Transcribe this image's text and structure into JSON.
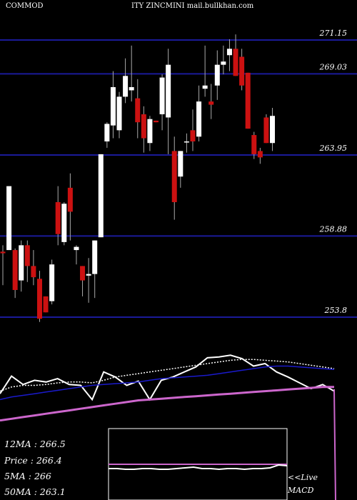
{
  "header": {
    "title_left": "COMMOD",
    "title_right": "ITY ZINCMINI mail.bullkhan.com"
  },
  "chart_data": {
    "type": "candlestick",
    "price_axis": {
      "labels": [
        "271.15",
        "269.03",
        "263.95",
        "258.88",
        "253.8"
      ],
      "values": [
        271.15,
        269.03,
        263.95,
        258.88,
        253.8
      ],
      "grid": true,
      "position": "right"
    },
    "candles": [
      {
        "o": 257.9,
        "h": 258.3,
        "l": 255.8,
        "c": 257.8,
        "up": false
      },
      {
        "o": 262.0,
        "h": 262.0,
        "l": 258.0,
        "c": 258.0,
        "up": true
      },
      {
        "o": 255.5,
        "h": 258.1,
        "l": 255.0,
        "c": 258.0,
        "up": false
      },
      {
        "o": 258.3,
        "h": 258.6,
        "l": 255.4,
        "c": 256.1,
        "up": true
      },
      {
        "o": 258.3,
        "h": 258.6,
        "l": 256.0,
        "c": 257.0,
        "up": false
      },
      {
        "o": 257.0,
        "h": 258.0,
        "l": 255.8,
        "c": 256.3,
        "up": false
      },
      {
        "o": 256.2,
        "h": 256.7,
        "l": 253.5,
        "c": 253.7,
        "up": false
      },
      {
        "o": 254.1,
        "h": 255.1,
        "l": 254.1,
        "c": 255.1,
        "up": false
      },
      {
        "o": 254.8,
        "h": 257.4,
        "l": 254.6,
        "c": 257.1,
        "up": true
      },
      {
        "o": 259.0,
        "h": 262.0,
        "l": 258.3,
        "c": 261.0,
        "up": false
      },
      {
        "o": 258.5,
        "h": 261.0,
        "l": 258.3,
        "c": 260.9,
        "up": true
      },
      {
        "o": 261.9,
        "h": 262.8,
        "l": 258.6,
        "c": 260.4,
        "up": false
      },
      {
        "o": 258.2,
        "h": 258.3,
        "l": 257.1,
        "c": 258.0,
        "up": true
      },
      {
        "o": 256.1,
        "h": 257.0,
        "l": 255.1,
        "c": 257.0,
        "up": false
      },
      {
        "o": 256.5,
        "h": 257.5,
        "l": 254.7,
        "c": 256.4,
        "up": true
      },
      {
        "o": 256.5,
        "h": 258.6,
        "l": 255.0,
        "c": 258.6,
        "up": true
      },
      {
        "o": 258.8,
        "h": 264.0,
        "l": 258.8,
        "c": 264.0,
        "up": true
      },
      {
        "o": 264.8,
        "h": 266.0,
        "l": 264.4,
        "c": 265.9,
        "up": true
      },
      {
        "o": 265.8,
        "h": 269.2,
        "l": 265.0,
        "c": 268.2,
        "up": true
      },
      {
        "o": 265.5,
        "h": 267.9,
        "l": 265.0,
        "c": 267.6,
        "up": true
      },
      {
        "o": 267.6,
        "h": 270.0,
        "l": 267.2,
        "c": 268.9,
        "up": true
      },
      {
        "o": 268.2,
        "h": 270.8,
        "l": 267.3,
        "c": 268.0,
        "up": true
      },
      {
        "o": 267.5,
        "h": 268.7,
        "l": 265.0,
        "c": 266.0,
        "up": false
      },
      {
        "o": 266.5,
        "h": 267.0,
        "l": 264.1,
        "c": 265.0,
        "up": false
      },
      {
        "o": 264.7,
        "h": 266.4,
        "l": 264.2,
        "c": 266.2,
        "up": true
      },
      {
        "o": 266.1,
        "h": 266.1,
        "l": 266.0,
        "c": 266.0,
        "up": false
      },
      {
        "o": 266.5,
        "h": 269.0,
        "l": 265.5,
        "c": 268.8,
        "up": true
      },
      {
        "o": 266.3,
        "h": 270.6,
        "l": 264.0,
        "c": 269.6,
        "up": true
      },
      {
        "o": 264.2,
        "h": 265.1,
        "l": 259.9,
        "c": 261.0,
        "up": false
      },
      {
        "o": 262.6,
        "h": 264.2,
        "l": 261.9,
        "c": 264.2,
        "up": true
      },
      {
        "o": 264.8,
        "h": 265.3,
        "l": 264.1,
        "c": 264.8,
        "up": true
      },
      {
        "o": 264.8,
        "h": 266.8,
        "l": 264.2,
        "c": 265.5,
        "up": false
      },
      {
        "o": 265.1,
        "h": 268.3,
        "l": 264.8,
        "c": 267.3,
        "up": true
      },
      {
        "o": 268.1,
        "h": 270.8,
        "l": 267.6,
        "c": 268.3,
        "up": true
      },
      {
        "o": 267.1,
        "h": 268.4,
        "l": 266.2,
        "c": 267.3,
        "up": false
      },
      {
        "o": 268.3,
        "h": 270.5,
        "l": 267.4,
        "c": 269.6,
        "up": true
      },
      {
        "o": 269.6,
        "h": 270.8,
        "l": 269.0,
        "c": 269.8,
        "up": true
      },
      {
        "o": 270.2,
        "h": 271.2,
        "l": 269.2,
        "c": 270.6,
        "up": true
      },
      {
        "o": 270.6,
        "h": 271.5,
        "l": 268.9,
        "c": 268.9,
        "up": false
      },
      {
        "o": 270.1,
        "h": 270.6,
        "l": 268.0,
        "c": 268.3,
        "up": false
      },
      {
        "o": 269.1,
        "h": 269.1,
        "l": 265.6,
        "c": 265.6,
        "up": false
      },
      {
        "o": 265.2,
        "h": 265.4,
        "l": 263.7,
        "c": 264.0,
        "up": false
      },
      {
        "o": 263.8,
        "h": 264.4,
        "l": 263.4,
        "c": 264.2,
        "up": false
      },
      {
        "o": 266.3,
        "h": 266.5,
        "l": 264.7,
        "c": 264.7,
        "up": false
      },
      {
        "o": 264.7,
        "h": 266.9,
        "l": 264.2,
        "c": 266.4,
        "up": true
      }
    ],
    "indicator_panel": {
      "lines": [
        {
          "name": "price",
          "color": "#ffffff",
          "values": [
            0.52,
            0.73,
            0.63,
            0.68,
            0.66,
            0.7,
            0.63,
            0.62,
            0.45,
            0.78,
            0.72,
            0.62,
            0.67,
            0.45,
            0.68,
            0.72,
            0.78,
            0.84,
            0.95,
            0.96,
            0.98,
            0.94,
            0.85,
            0.88,
            0.78,
            0.72,
            0.65,
            0.58,
            0.63,
            0.55
          ]
        },
        {
          "name": "ma-fast",
          "color": "#ffffff",
          "dashed": true,
          "values": [
            0.55,
            0.6,
            0.62,
            0.62,
            0.63,
            0.65,
            0.66,
            0.66,
            0.65,
            0.68,
            0.72,
            0.74,
            0.76,
            0.78,
            0.8,
            0.82,
            0.84,
            0.86,
            0.88,
            0.9,
            0.92,
            0.93,
            0.93,
            0.92,
            0.91,
            0.9,
            0.88,
            0.86,
            0.84,
            0.82
          ]
        },
        {
          "name": "ma-mid",
          "color": "#1a1acc",
          "values": [
            0.45,
            0.48,
            0.5,
            0.52,
            0.54,
            0.56,
            0.58,
            0.6,
            0.62,
            0.63,
            0.64,
            0.65,
            0.66,
            0.68,
            0.7,
            0.71,
            0.72,
            0.73,
            0.74,
            0.76,
            0.78,
            0.8,
            0.82,
            0.84,
            0.85,
            0.85,
            0.84,
            0.83,
            0.82,
            0.81
          ]
        },
        {
          "name": "ma-slow",
          "color": "#cc66cc",
          "values": [
            0.2,
            0.22,
            0.24,
            0.26,
            0.28,
            0.3,
            0.32,
            0.34,
            0.36,
            0.38,
            0.4,
            0.42,
            0.44,
            0.45,
            0.46,
            0.47,
            0.48,
            0.49,
            0.5,
            0.51,
            0.52,
            0.53,
            0.54,
            0.55,
            0.56,
            0.57,
            0.58,
            0.59,
            0.6,
            0.6
          ]
        }
      ]
    },
    "macd_panel": {
      "label": "<<Live MACD"
    }
  },
  "stats": {
    "ma12": {
      "label": "12MA",
      "value": "266.5"
    },
    "price": {
      "label": "Price",
      "value": "266.4"
    },
    "ma5": {
      "label": "5MA",
      "value": "266"
    },
    "ma50": {
      "label": "50MA",
      "value": "263.1"
    }
  },
  "colors": {
    "grid": "#1a1a99",
    "up": "#ffffff",
    "down": "#cc1111",
    "wick": "#aaaaaa"
  }
}
